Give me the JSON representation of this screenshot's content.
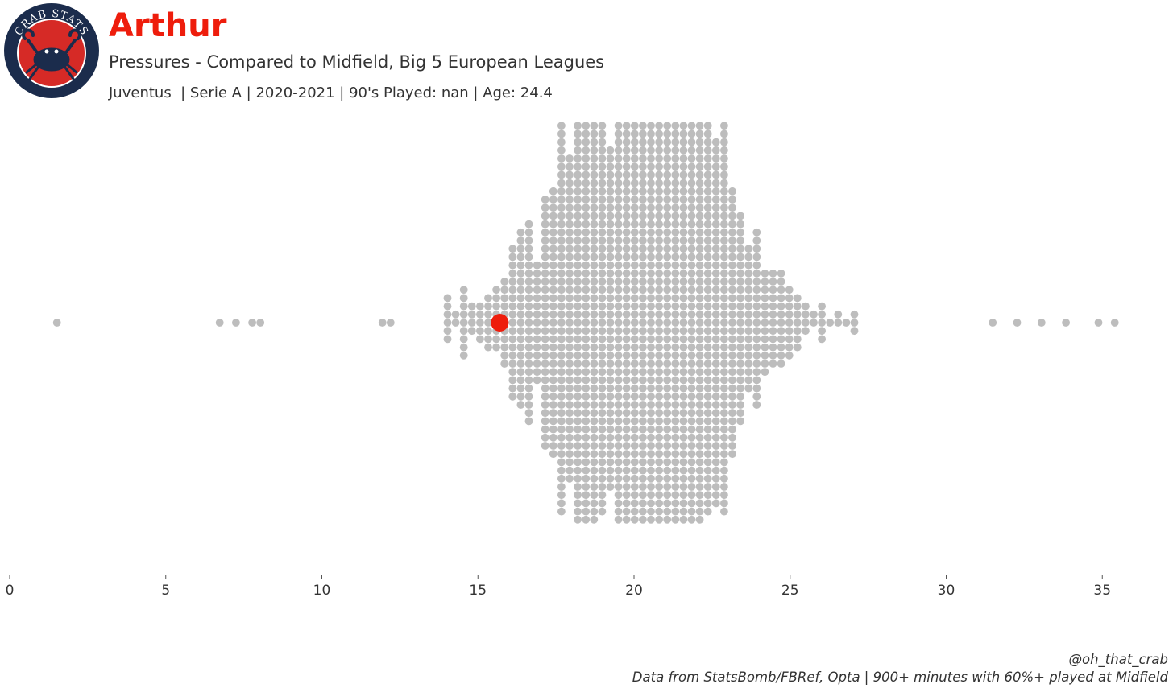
{
  "header": {
    "logo_text": "CRAB STATS",
    "title": "Arthur",
    "subtitle": "Pressures - Compared to Midfield, Big 5 European Leagues",
    "info": "Juventus  | Serie A | 2020-2021 | 90's Played: nan | Age: 24.4"
  },
  "colors": {
    "title": "#ee1d0c",
    "highlight": "#ee1d0c",
    "dots": "#bdbdbd",
    "logo_navy": "#1b2c4c",
    "logo_red": "#d62a26"
  },
  "chart_data": {
    "type": "scatter",
    "style": "beeswarm",
    "xlim": [
      0,
      36
    ],
    "xticks": [
      0,
      5,
      10,
      15,
      20,
      25,
      30,
      35
    ],
    "grid": false,
    "highlight": {
      "label": "Arthur",
      "value": 15.7
    },
    "distribution_summary": {
      "min": 1.5,
      "max": 35.5,
      "mode_region": [
        16.5,
        22.5
      ],
      "approx_count": 1500
    },
    "notable_outliers": [
      1.5,
      6.8,
      7.2,
      7.8,
      8.0,
      31.6,
      32.3,
      33.0,
      33.9,
      34.9,
      35.5
    ]
  },
  "footer": {
    "handle": "@oh_that_crab",
    "source": "Data from StatsBomb/FBRef, Opta | 900+ minutes with 60%+ played at Midfield"
  }
}
